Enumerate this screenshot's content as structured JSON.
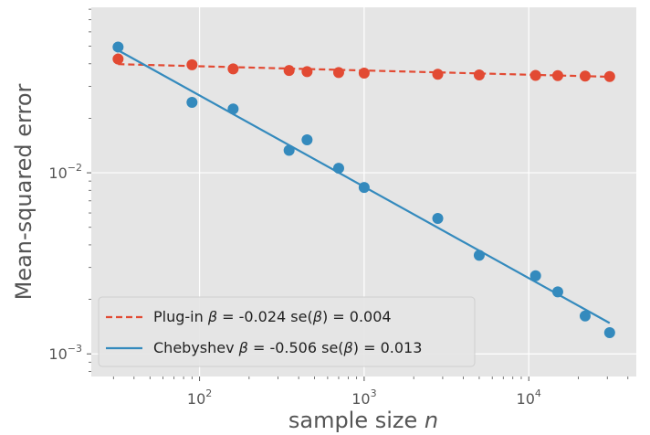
{
  "chart_data": {
    "type": "scatter",
    "xscale": "log",
    "yscale": "log",
    "xlim": [
      22,
      45000
    ],
    "ylim": [
      0.00075,
      0.082
    ],
    "xlabel": "sample size n",
    "ylabel": "Mean-squared error",
    "x_ticks": [
      {
        "value": 100,
        "base": "10",
        "exp": "2"
      },
      {
        "value": 1000,
        "base": "10",
        "exp": "3"
      },
      {
        "value": 10000,
        "base": "10",
        "exp": "4"
      }
    ],
    "y_ticks": [
      {
        "value": 0.01,
        "base": "10",
        "exp": "−2"
      },
      {
        "value": 0.001,
        "base": "10",
        "exp": "−3"
      }
    ],
    "grid": true,
    "legend_position": "lower-left",
    "series": [
      {
        "name": "Plug-in",
        "color": "#E24A33",
        "marker": "circle",
        "fit_style": "dashed",
        "legend": {
          "prefix": "Plug-in ",
          "beta_hat": "β",
          "mid": " = -0.024 se(",
          "beta_hat2": "β",
          "suffix": ") = 0.004"
        },
        "x": [
          32,
          90,
          160,
          350,
          450,
          700,
          1000,
          2800,
          5000,
          11000,
          15000,
          22000,
          31000
        ],
        "y": [
          0.0425,
          0.0395,
          0.0375,
          0.0367,
          0.0362,
          0.0358,
          0.0355,
          0.035,
          0.0347,
          0.0345,
          0.0344,
          0.0342,
          0.034
        ],
        "fit": {
          "x": [
            32,
            31000
          ],
          "y": [
            0.0398,
            0.0339
          ]
        }
      },
      {
        "name": "Chebyshev",
        "color": "#348ABD",
        "marker": "circle",
        "fit_style": "solid",
        "legend": {
          "prefix": "Chebyshev ",
          "beta_hat": "β",
          "mid": " = -0.506 se(",
          "beta_hat2": "β",
          "suffix": ") = 0.013"
        },
        "x": [
          32,
          90,
          160,
          350,
          450,
          700,
          1000,
          2800,
          5000,
          11000,
          15000,
          22000,
          31000
        ],
        "y": [
          0.0495,
          0.0245,
          0.0225,
          0.0133,
          0.0152,
          0.0106,
          0.0083,
          0.0056,
          0.0035,
          0.0027,
          0.0022,
          0.00162,
          0.00131
        ],
        "fit": {
          "x": [
            32,
            31000
          ],
          "y": [
            0.0475,
            0.00148
          ]
        }
      }
    ]
  }
}
